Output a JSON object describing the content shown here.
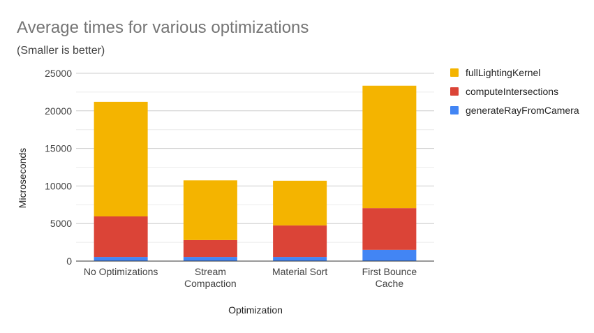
{
  "chart_data": {
    "type": "bar",
    "stacked": true,
    "title": "Average times for various optimizations",
    "subtitle": "(Smaller is better)",
    "xlabel": "Optimization",
    "ylabel": "Microseconds",
    "ylim": [
      0,
      25000
    ],
    "yticks": [
      "0",
      "5000",
      "10000",
      "15000",
      "20000",
      "25000"
    ],
    "grid": true,
    "legend_position": "right",
    "categories": [
      [
        "No Optimizations"
      ],
      [
        "Stream",
        "Compaction"
      ],
      [
        "Material Sort"
      ],
      [
        "First Bounce",
        "Cache"
      ]
    ],
    "series": [
      {
        "name": "generateRayFromCamera",
        "color": "#4285f4",
        "values": [
          550,
          550,
          550,
          1500
        ]
      },
      {
        "name": "computeIntersections",
        "color": "#db4437",
        "values": [
          5400,
          2250,
          4200,
          5550
        ]
      },
      {
        "name": "fullLightingKernel",
        "color": "#f4b400",
        "values": [
          15250,
          7950,
          5950,
          16300
        ]
      }
    ],
    "legend_order": [
      "fullLightingKernel",
      "computeIntersections",
      "generateRayFromCamera"
    ]
  }
}
